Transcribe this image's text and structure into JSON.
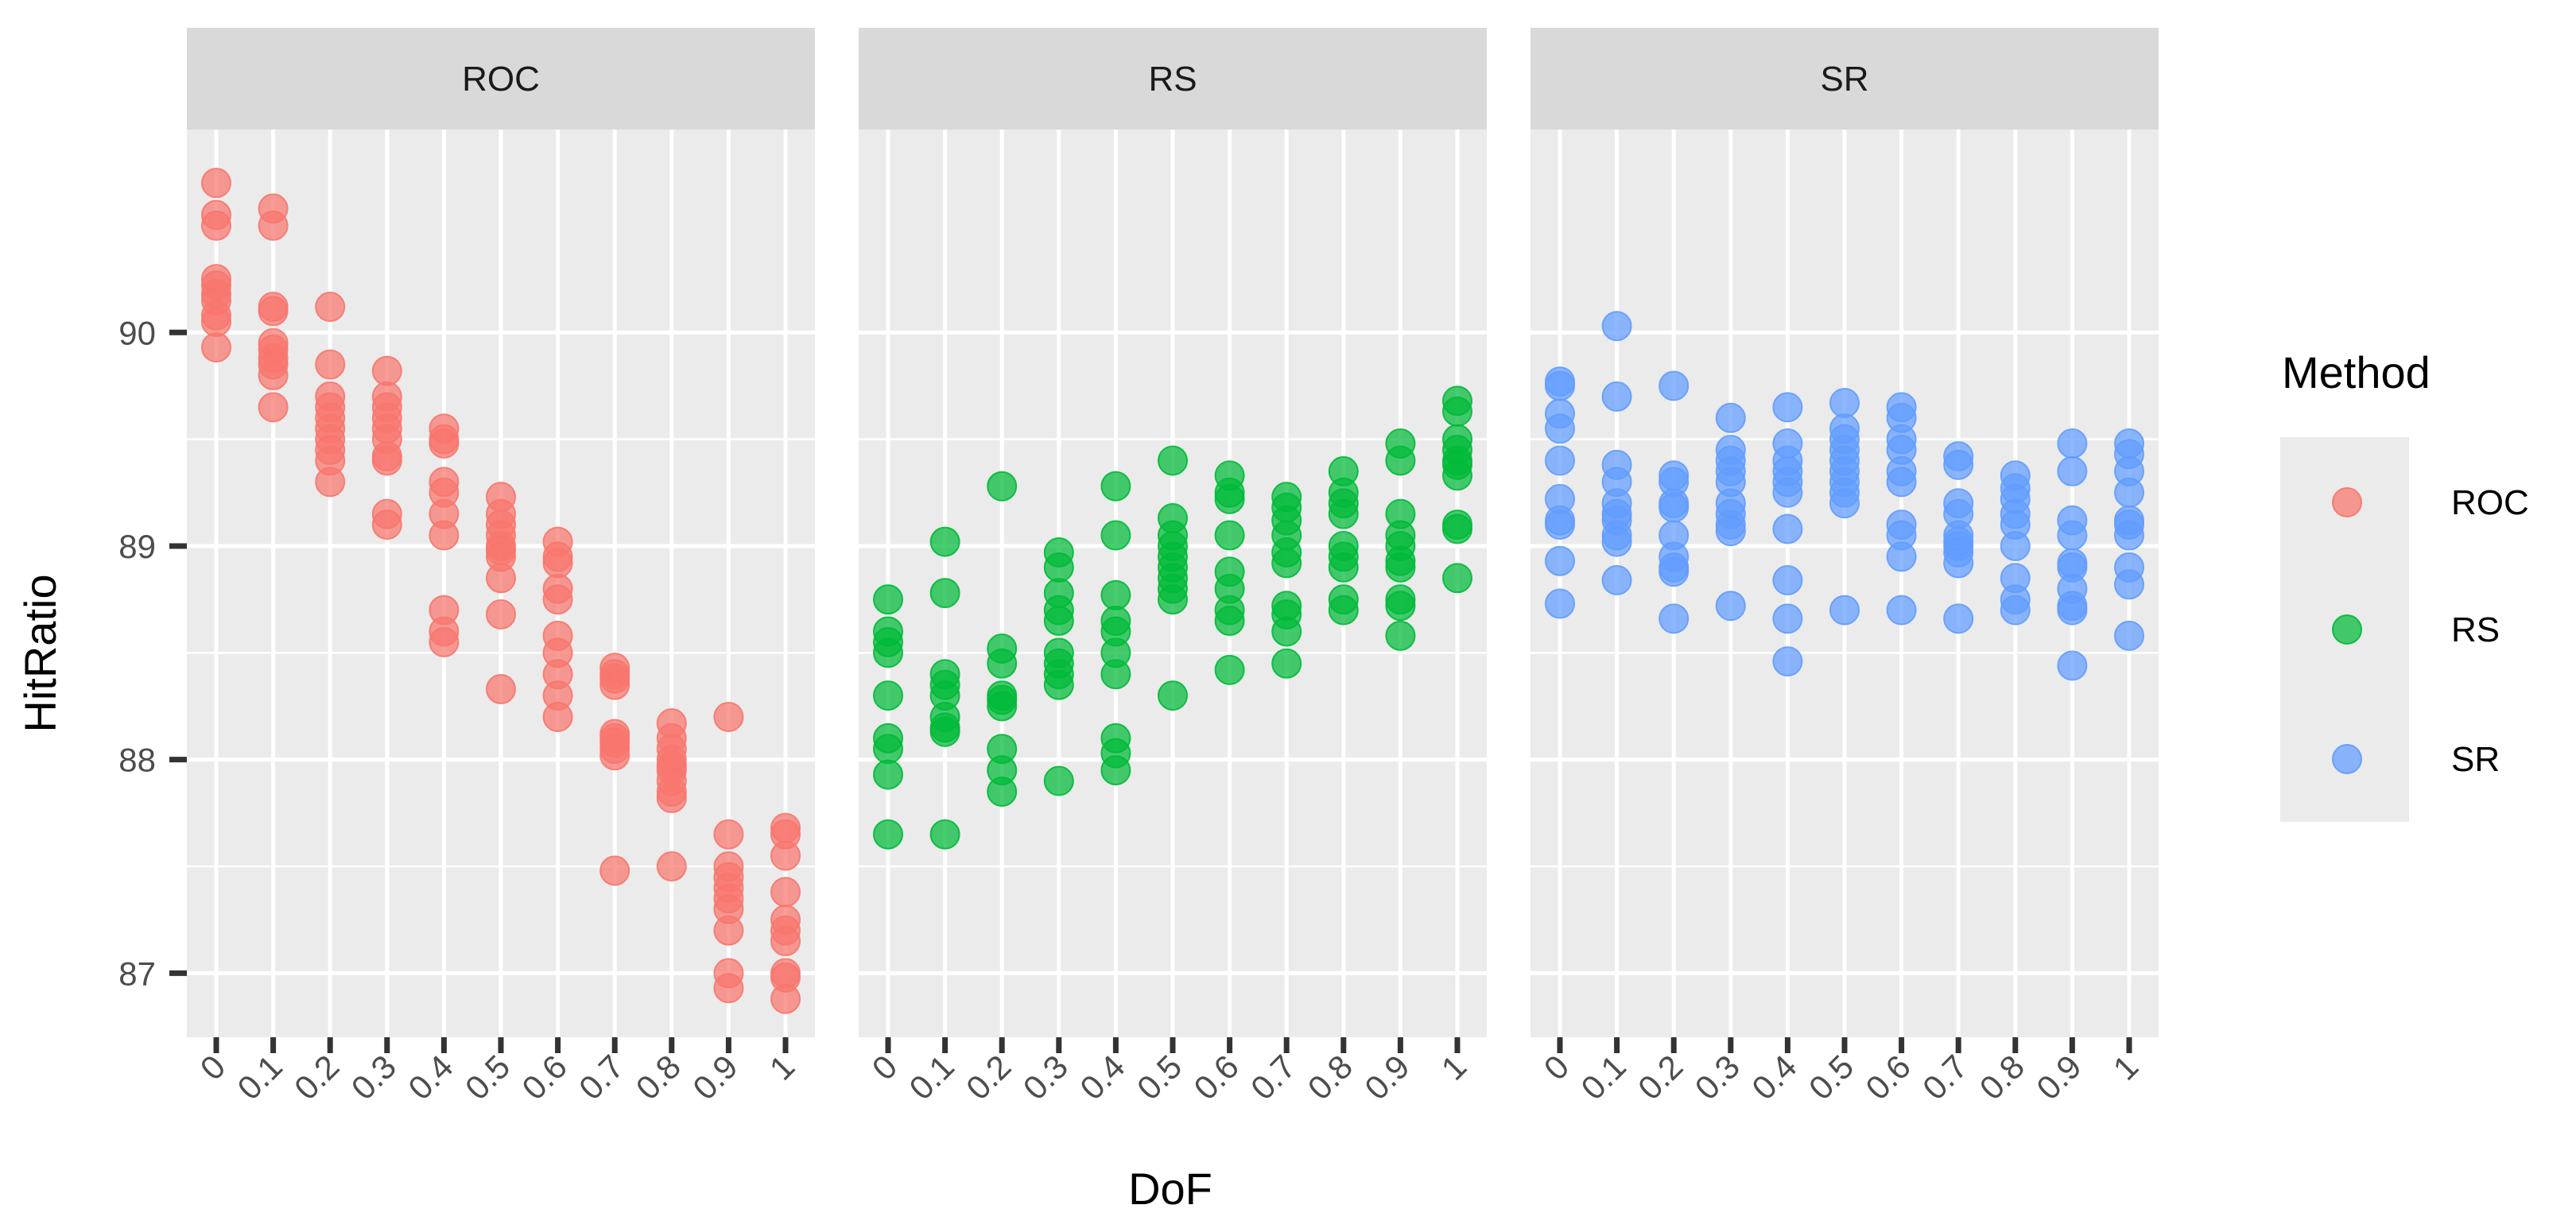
{
  "chart_data": {
    "type": "scatter",
    "facet_by": "Method",
    "xlabel": "DoF",
    "ylabel": "HitRatio",
    "x_categories": [
      "0",
      "0.1",
      "0.2",
      "0.3",
      "0.4",
      "0.5",
      "0.6",
      "0.7",
      "0.8",
      "0.9",
      "1"
    ],
    "y_ticks": [
      87,
      88,
      89,
      90
    ],
    "ylim": [
      86.7,
      90.95
    ],
    "grid": true,
    "legend": {
      "title": "Method",
      "position": "right",
      "entries": [
        {
          "label": "ROC",
          "color": "#F8766D"
        },
        {
          "label": "RS",
          "color": "#00BA38"
        },
        {
          "label": "SR",
          "color": "#619CFF"
        }
      ]
    },
    "panels": [
      {
        "label": "ROC",
        "color": "#F8766D",
        "points_by_x": [
          [
            90.7,
            90.55,
            90.5,
            90.25,
            90.22,
            90.18,
            90.15,
            90.08,
            90.05,
            89.93
          ],
          [
            90.58,
            90.5,
            90.12,
            90.1,
            89.95,
            89.92,
            89.88,
            89.85,
            89.8,
            89.65
          ],
          [
            90.12,
            89.85,
            89.7,
            89.65,
            89.6,
            89.55,
            89.5,
            89.45,
            89.4,
            89.3
          ],
          [
            89.82,
            89.7,
            89.65,
            89.6,
            89.55,
            89.5,
            89.42,
            89.4,
            89.15,
            89.1
          ],
          [
            89.55,
            89.5,
            89.48,
            89.3,
            89.25,
            89.15,
            89.05,
            88.7,
            88.6,
            88.55
          ],
          [
            89.23,
            89.15,
            89.1,
            89.05,
            89.0,
            88.98,
            88.95,
            88.85,
            88.68,
            88.33
          ],
          [
            89.02,
            88.95,
            88.92,
            88.8,
            88.75,
            88.58,
            88.5,
            88.4,
            88.3,
            88.2
          ],
          [
            88.43,
            88.4,
            88.38,
            88.35,
            88.12,
            88.1,
            88.08,
            88.05,
            88.02,
            87.48
          ],
          [
            88.17,
            88.1,
            88.05,
            88.0,
            87.97,
            87.95,
            87.9,
            87.85,
            87.82,
            87.5
          ],
          [
            88.2,
            87.65,
            87.5,
            87.45,
            87.4,
            87.35,
            87.3,
            87.2,
            87.0,
            86.93
          ],
          [
            87.68,
            87.65,
            87.55,
            87.38,
            87.25,
            87.2,
            87.15,
            87.0,
            86.98,
            86.88
          ]
        ]
      },
      {
        "label": "RS",
        "color": "#00BA38",
        "points_by_x": [
          [
            88.75,
            88.6,
            88.55,
            88.5,
            88.3,
            88.1,
            88.05,
            87.93,
            87.65
          ],
          [
            89.02,
            88.78,
            88.4,
            88.35,
            88.3,
            88.2,
            88.15,
            88.13,
            87.65
          ],
          [
            89.28,
            88.52,
            88.45,
            88.3,
            88.28,
            88.25,
            88.05,
            87.95,
            87.85
          ],
          [
            88.97,
            88.9,
            88.78,
            88.7,
            88.65,
            88.5,
            88.45,
            88.4,
            88.35,
            87.9
          ],
          [
            89.28,
            89.05,
            88.77,
            88.65,
            88.6,
            88.5,
            88.4,
            88.1,
            88.03,
            87.95
          ],
          [
            89.4,
            89.13,
            89.05,
            89.0,
            88.95,
            88.9,
            88.85,
            88.8,
            88.75,
            88.3
          ],
          [
            89.33,
            89.25,
            89.22,
            89.05,
            88.88,
            88.8,
            88.7,
            88.65,
            88.42
          ],
          [
            89.23,
            89.18,
            89.12,
            89.05,
            88.97,
            88.92,
            88.72,
            88.68,
            88.6,
            88.45
          ],
          [
            89.35,
            89.25,
            89.2,
            89.15,
            89.0,
            88.95,
            88.9,
            88.75,
            88.7
          ],
          [
            89.48,
            89.4,
            89.15,
            89.05,
            89.0,
            88.93,
            88.9,
            88.75,
            88.72,
            88.58
          ],
          [
            89.68,
            89.63,
            89.5,
            89.45,
            89.4,
            89.38,
            89.33,
            89.1,
            89.08,
            88.85
          ]
        ]
      },
      {
        "label": "SR",
        "color": "#619CFF",
        "points_by_x": [
          [
            89.77,
            89.75,
            89.62,
            89.55,
            89.4,
            89.22,
            89.12,
            89.1,
            88.93,
            88.73
          ],
          [
            90.03,
            89.7,
            89.38,
            89.3,
            89.2,
            89.15,
            89.12,
            89.05,
            89.02,
            88.84
          ],
          [
            89.75,
            89.33,
            89.3,
            89.2,
            89.18,
            89.05,
            88.95,
            88.9,
            88.88,
            88.66
          ],
          [
            89.6,
            89.45,
            89.4,
            89.35,
            89.3,
            89.2,
            89.15,
            89.1,
            89.07,
            88.72
          ],
          [
            89.65,
            89.48,
            89.4,
            89.35,
            89.3,
            89.25,
            89.08,
            88.84,
            88.66,
            88.46
          ],
          [
            89.67,
            89.55,
            89.5,
            89.45,
            89.4,
            89.35,
            89.3,
            89.25,
            89.2,
            88.7
          ],
          [
            89.65,
            89.6,
            89.5,
            89.45,
            89.35,
            89.3,
            89.1,
            89.05,
            88.95,
            88.7
          ],
          [
            89.42,
            89.38,
            89.2,
            89.15,
            89.05,
            89.02,
            89.0,
            88.97,
            88.92,
            88.66
          ],
          [
            89.33,
            89.27,
            89.22,
            89.15,
            89.1,
            89.0,
            88.85,
            88.75,
            88.7
          ],
          [
            89.48,
            89.35,
            89.12,
            89.05,
            88.92,
            88.9,
            88.8,
            88.72,
            88.7,
            88.44
          ],
          [
            89.48,
            89.43,
            89.35,
            89.25,
            89.12,
            89.1,
            89.05,
            88.9,
            88.82,
            88.58
          ]
        ]
      }
    ]
  }
}
